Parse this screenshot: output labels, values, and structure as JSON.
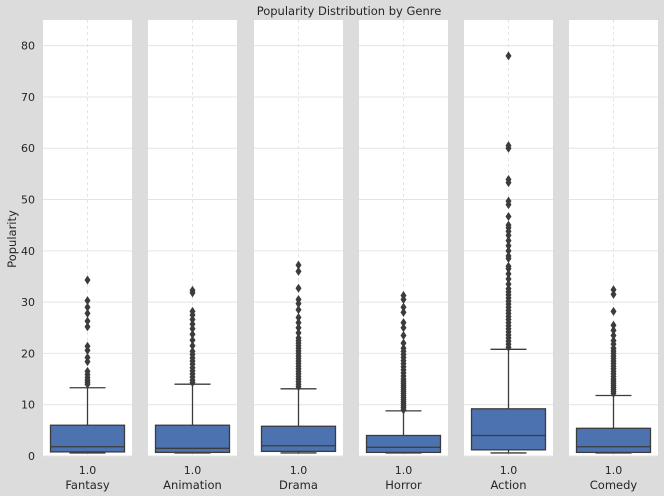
{
  "chart_data": {
    "type": "boxplot",
    "title": "Popularity Distribution by Genre",
    "ylabel": "Popularity",
    "ylim": [
      0,
      85
    ],
    "yticks": [
      0,
      10,
      20,
      30,
      40,
      50,
      60,
      70,
      80
    ],
    "grid": true,
    "colors": {
      "figure_bg": "#dcdcdc",
      "axes_bg": "#ffffff",
      "grid": "#e4e4e4",
      "box_fill": "#4c72b0",
      "line": "#3c3c3c"
    },
    "panels": [
      {
        "genre": "Fantasy",
        "tick": "1.0",
        "whislo": 0.6,
        "q1": 0.8,
        "median": 1.8,
        "q3": 6.0,
        "whishi": 13.3,
        "fliers": [
          14,
          14.4,
          14.8,
          15.3,
          15.9,
          16.5,
          18.4,
          19.2,
          20.6,
          21.4,
          25.2,
          26.3,
          27.8,
          29.0,
          30.3,
          34.3
        ]
      },
      {
        "genre": "Animation",
        "tick": "1.0",
        "whislo": 0.6,
        "q1": 0.7,
        "median": 1.5,
        "q3": 6.0,
        "whishi": 14.0,
        "fliers": [
          14.3,
          14.8,
          15.4,
          16.0,
          16.6,
          17.2,
          17.9,
          18.5,
          19.1,
          19.8,
          20.4,
          21.5,
          22.6,
          23.7,
          24.8,
          25.7,
          26.6,
          27.5,
          28.2,
          31.8,
          32.3
        ]
      },
      {
        "genre": "Drama",
        "tick": "1.0",
        "whislo": 0.6,
        "q1": 0.9,
        "median": 2.0,
        "q3": 5.8,
        "whishi": 13.1,
        "fliers": [
          13.5,
          14.0,
          14.5,
          15.0,
          15.5,
          16.0,
          16.5,
          17.0,
          17.5,
          18.0,
          18.5,
          19.0,
          19.5,
          20.0,
          20.5,
          21.0,
          21.5,
          22.0,
          22.5,
          23.0,
          24.0,
          25.0,
          26.0,
          27.0,
          28.5,
          29.7,
          30.5,
          32.7,
          36.0,
          37.2
        ]
      },
      {
        "genre": "Horror",
        "tick": "1.0",
        "whislo": 0.6,
        "q1": 0.7,
        "median": 1.7,
        "q3": 4.0,
        "whishi": 8.8,
        "fliers": [
          9.0,
          9.4,
          9.8,
          10.2,
          10.6,
          11.0,
          11.4,
          11.8,
          12.2,
          12.6,
          13.0,
          13.4,
          13.8,
          14.2,
          14.6,
          15.0,
          15.6,
          16.2,
          16.8,
          17.4,
          18.0,
          18.6,
          19.2,
          19.8,
          20.4,
          21.0,
          22.0,
          23.5,
          25.0,
          26.0,
          28.0,
          29.0,
          30.5,
          31.3
        ]
      },
      {
        "genre": "Action",
        "tick": "1.0",
        "whislo": 0.6,
        "q1": 1.2,
        "median": 4.0,
        "q3": 9.2,
        "whishi": 20.8,
        "fliers": [
          21.2,
          21.8,
          22.4,
          23.0,
          23.6,
          24.2,
          24.8,
          25.4,
          26.0,
          26.6,
          27.2,
          27.8,
          28.4,
          29.0,
          29.6,
          30.2,
          30.8,
          31.4,
          32.0,
          32.6,
          33.5,
          34.5,
          35.5,
          36.5,
          37.0,
          38.5,
          39.0,
          40.0,
          41.0,
          42.0,
          43.0,
          43.8,
          44.5,
          45.0,
          46.7,
          49.0,
          49.7,
          53.3,
          53.9,
          60.0,
          60.5,
          78.0
        ]
      },
      {
        "genre": "Comedy",
        "tick": "1.0",
        "whislo": 0.6,
        "q1": 0.7,
        "median": 1.8,
        "q3": 5.4,
        "whishi": 11.8,
        "fliers": [
          12.2,
          12.6,
          13.0,
          13.4,
          13.8,
          14.2,
          14.6,
          15.0,
          15.5,
          16.0,
          16.5,
          17.0,
          17.5,
          18.0,
          18.5,
          19.0,
          19.5,
          20.0,
          20.5,
          21.0,
          21.8,
          22.5,
          23.5,
          24.5,
          25.5,
          28.2,
          31.5,
          32.4
        ]
      }
    ]
  }
}
